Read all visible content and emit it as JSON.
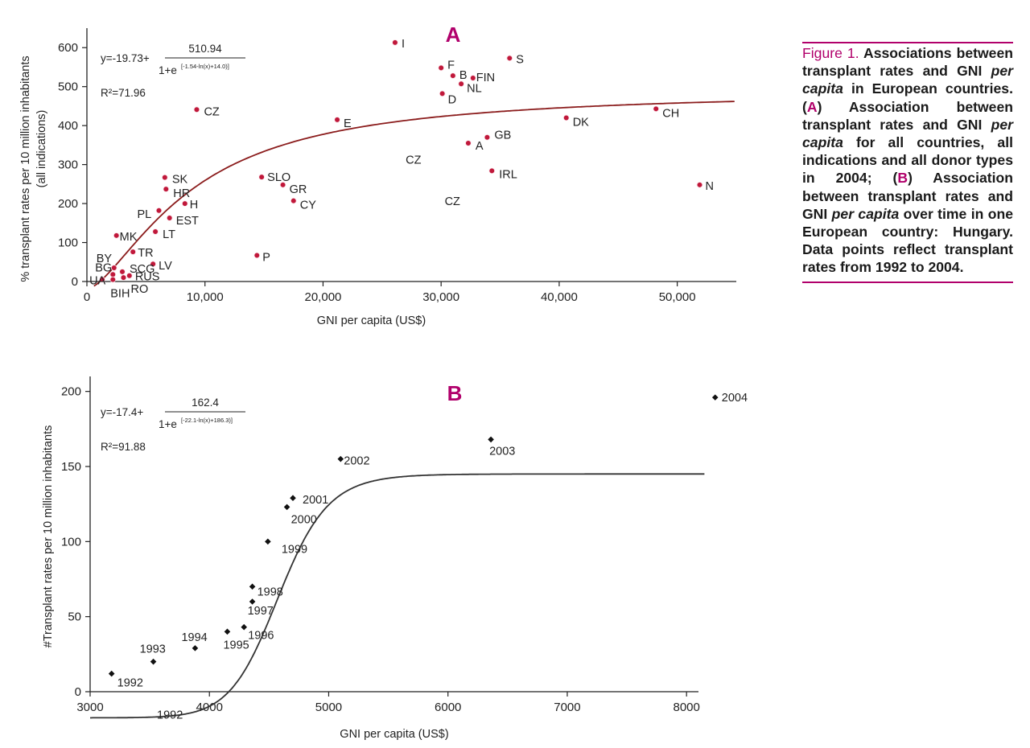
{
  "caption": {
    "figure_label": "Figure 1.",
    "p1": "Associations between transplant rates and GNI ",
    "p1_em": "per capita",
    "p2": " in European countries. (",
    "letter_a": "A",
    "p3": ") Association between transplant rates and GNI ",
    "p3_em": "per capita",
    "p4": " for all countries, all indications and all donor types in 2004; (",
    "letter_b": "B",
    "p5": ") Association between transplant rates and GNI ",
    "p5_em": "per capita",
    "p6": " over time in one European country: Hungary. Data points reflect transplant rates from 1992 to 2004."
  },
  "colors": {
    "accent": "#b1006b",
    "points_a": "#c0183a",
    "curve_a": "#8b1c1c",
    "points_b": "#111111",
    "curve_b": "#333333"
  },
  "chart_data": [
    {
      "panel": "A",
      "type": "scatter",
      "xlabel": "GNI per capita (US$)",
      "ylabel_line1": "% transplant rates per 10 million inhabitants",
      "ylabel_line2": "(all indications)",
      "xlim": [
        0,
        55000
      ],
      "ylim": [
        0,
        650
      ],
      "x_ticks": [
        0,
        10000,
        20000,
        30000,
        40000,
        50000
      ],
      "x_tick_labels": [
        "0",
        "10,000",
        "20,000",
        "30,000",
        "40,000",
        "50,000"
      ],
      "y_ticks": [
        0,
        100,
        200,
        300,
        400,
        500,
        600
      ],
      "y_tick_labels": [
        "0",
        "100",
        "200",
        "300",
        "400",
        "500",
        "600"
      ],
      "formula": {
        "prefix": "y=-19.73+",
        "numerator": "510.94",
        "denom_base": "1+e",
        "exponent": "[-1.54-ln(x)+14.0)]"
      },
      "r2": "R²=71.96",
      "fit_curve": {
        "a": -19.73,
        "b": 510.94,
        "k": 1.54,
        "c": 14.0
      },
      "points": [
        {
          "label": "I",
          "x": 26100,
          "y": 613
        },
        {
          "label": "S",
          "x": 35800,
          "y": 573
        },
        {
          "label": "F",
          "x": 30000,
          "y": 548
        },
        {
          "label": "B",
          "x": 31000,
          "y": 528
        },
        {
          "label": "FIN",
          "x": 32700,
          "y": 522
        },
        {
          "label": "NL",
          "x": 31700,
          "y": 507
        },
        {
          "label": "D",
          "x": 30100,
          "y": 482
        },
        {
          "label": "CH",
          "x": 48200,
          "y": 443
        },
        {
          "label": "CZ",
          "x": 9300,
          "y": 441
        },
        {
          "label": "DK",
          "x": 40600,
          "y": 420
        },
        {
          "label": "E",
          "x": 21200,
          "y": 415
        },
        {
          "label": "GB",
          "x": 33900,
          "y": 370
        },
        {
          "label": "A",
          "x": 32300,
          "y": 355
        },
        {
          "label": "IRL",
          "x": 34300,
          "y": 284
        },
        {
          "label": "SLO",
          "x": 14800,
          "y": 268
        },
        {
          "label": "SK",
          "x": 6600,
          "y": 267
        },
        {
          "label": "N",
          "x": 51900,
          "y": 248
        },
        {
          "label": "GR",
          "x": 16600,
          "y": 248
        },
        {
          "label": "HR",
          "x": 6700,
          "y": 237
        },
        {
          "label": "CY",
          "x": 17500,
          "y": 207
        },
        {
          "label": "H",
          "x": 8300,
          "y": 200
        },
        {
          "label": "PL",
          "x": 6100,
          "y": 182
        },
        {
          "label": "EST",
          "x": 7000,
          "y": 163
        },
        {
          "label": "LT",
          "x": 5800,
          "y": 128
        },
        {
          "label": "MK",
          "x": 2500,
          "y": 118
        },
        {
          "label": "TR",
          "x": 3900,
          "y": 76
        },
        {
          "label": "P",
          "x": 14400,
          "y": 67
        },
        {
          "label": "LV",
          "x": 5600,
          "y": 45
        },
        {
          "label": "BY",
          "x": 2300,
          "y": 35
        },
        {
          "label": "SCG",
          "x": 3000,
          "y": 25
        },
        {
          "label": "BG",
          "x": 2200,
          "y": 18
        },
        {
          "label": "RUS",
          "x": 3600,
          "y": 15
        },
        {
          "label": "RO",
          "x": 3100,
          "y": 10
        },
        {
          "label": "UA",
          "x": 1300,
          "y": 5
        },
        {
          "label": "BIH",
          "x": 2200,
          "y": 5
        }
      ],
      "annotations": [
        {
          "text": "CZ",
          "x": 27000,
          "y": 302
        },
        {
          "text": "CZ",
          "x": 30300,
          "y": 196
        }
      ]
    },
    {
      "panel": "B",
      "type": "scatter",
      "xlabel": "GNI per capita (US$)",
      "ylabel": "#Transplant rates per 10 million inhabitants",
      "xlim": [
        3000,
        8100
      ],
      "ylim": [
        0,
        210
      ],
      "x_ticks": [
        3000,
        4000,
        5000,
        6000,
        7000,
        8000
      ],
      "x_tick_labels": [
        "3000",
        "4000",
        "5000",
        "6000",
        "7000",
        "8000"
      ],
      "y_ticks": [
        0,
        50,
        100,
        150,
        200
      ],
      "y_tick_labels": [
        "0",
        "50",
        "100",
        "150",
        "200"
      ],
      "formula": {
        "prefix": "y=-17.4+",
        "numerator": "162.4",
        "denom_base": "1+e",
        "exponent": "[-22.1-ln(x)+186.3)]"
      },
      "r2": "R²=91.88",
      "fit_curve": {
        "a": -17.4,
        "b": 162.4,
        "k": 22.1,
        "c": 186.3
      },
      "points": [
        {
          "label": "1992",
          "x": 3180,
          "y": 12
        },
        {
          "label": "1993",
          "x": 3530,
          "y": 20
        },
        {
          "label": "1994",
          "x": 3880,
          "y": 29
        },
        {
          "label": "1995",
          "x": 4150,
          "y": 40
        },
        {
          "label": "1996",
          "x": 4290,
          "y": 43
        },
        {
          "label": "1997",
          "x": 4360,
          "y": 60
        },
        {
          "label": "1998",
          "x": 4360,
          "y": 70
        },
        {
          "label": "1999",
          "x": 4490,
          "y": 100
        },
        {
          "label": "2000",
          "x": 4650,
          "y": 123
        },
        {
          "label": "2001",
          "x": 4700,
          "y": 129
        },
        {
          "label": "2002",
          "x": 5100,
          "y": 155
        },
        {
          "label": "2003",
          "x": 6360,
          "y": 168
        },
        {
          "label": "2004",
          "x": 8240,
          "y": 196
        }
      ],
      "annotations": [
        {
          "text": "1992",
          "x": 3560,
          "y": -18
        }
      ]
    }
  ]
}
